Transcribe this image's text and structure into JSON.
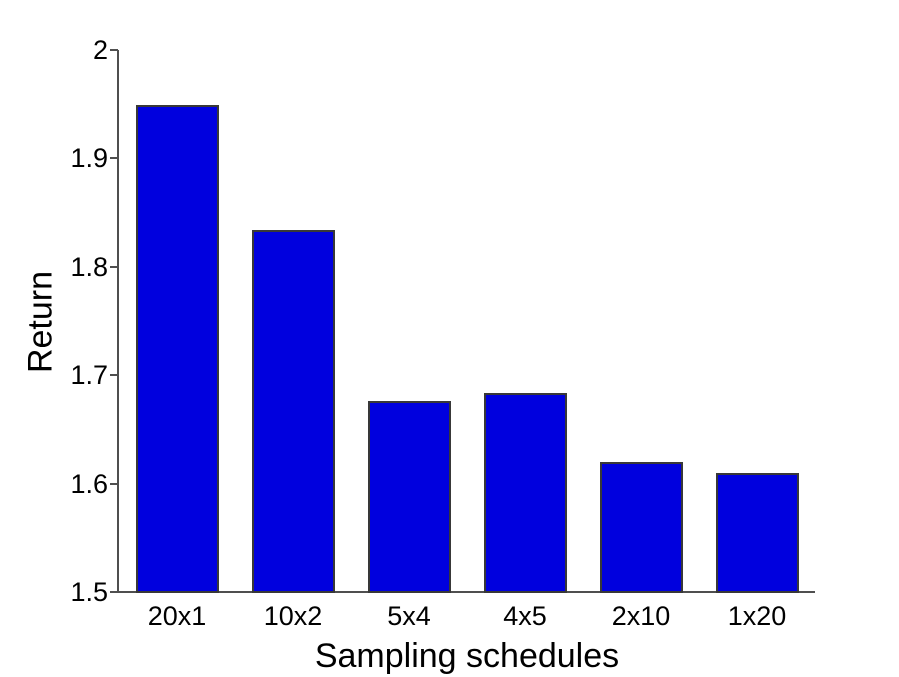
{
  "chart_data": {
    "type": "bar",
    "title": "",
    "xlabel": "Sampling schedules",
    "ylabel": "Return",
    "categories": [
      "20x1",
      "10x2",
      "5x4",
      "4x5",
      "2x10",
      "1x20"
    ],
    "values": [
      1.949,
      1.834,
      1.676,
      1.684,
      1.62,
      1.61
    ],
    "ylim": [
      1.5,
      2.0
    ],
    "yticks": [
      1.5,
      1.6,
      1.7,
      1.8,
      1.9,
      2.0
    ],
    "ytick_labels": [
      "1.5",
      "1.6",
      "1.7",
      "1.8",
      "1.9",
      "2"
    ],
    "grid": false,
    "legend": "none",
    "bar_color": "#0000DE",
    "bar_edge_color": "#383838",
    "axis_color": "#4f4f4f",
    "bar_width_fraction": 0.715
  }
}
